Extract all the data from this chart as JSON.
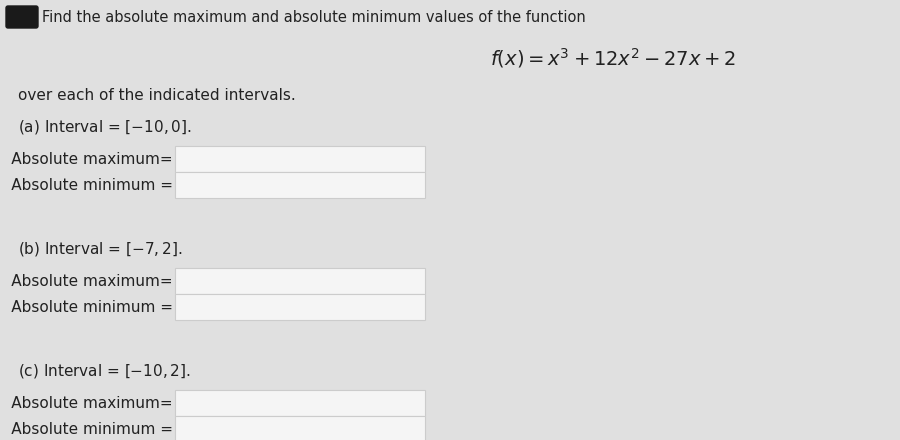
{
  "background_color": "#e0e0e0",
  "title_text": "Find the absolute maximum and absolute minimum values of the function",
  "function_formula": "$f(x) = x^3 + 12x^2 - 27x + 2$",
  "subtitle": "over each of the indicated intervals.",
  "sections": [
    {
      "label": "(a) Interval = $[-10, 0]$.",
      "items": [
        "1.  Absolute maximum=",
        "2.  Absolute minimum ="
      ]
    },
    {
      "label": "(b) Interval = $[-7, 2]$.",
      "items": [
        "1.  Absolute maximum=",
        "2.  Absolute minimum ="
      ]
    },
    {
      "label": "(c) Interval = $[-10, 2]$.",
      "items": [
        "1.  Absolute maximum=",
        "2.  Absolute minimum ="
      ]
    }
  ],
  "text_color": "#222222",
  "box_face_color": "#f5f5f5",
  "box_edge_color": "#cccccc",
  "font_size_title": 10.5,
  "font_size_body": 11,
  "font_size_formula": 14,
  "icon_color": "#1a1a1a"
}
